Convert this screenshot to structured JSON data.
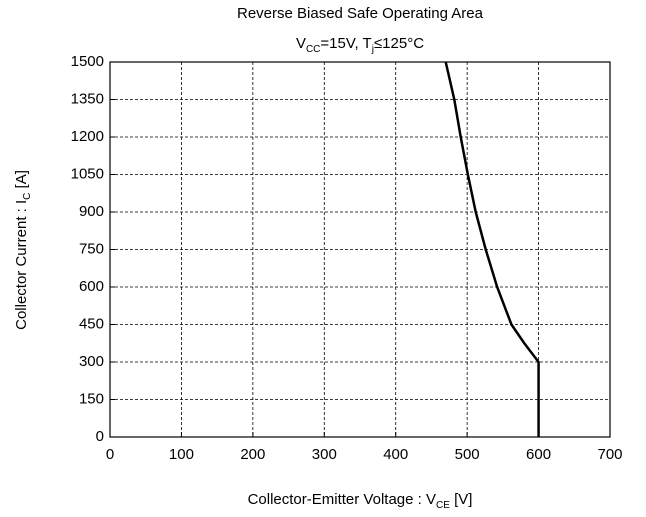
{
  "chart_data": {
    "type": "line",
    "title": "Reverse Biased Safe Operating Area",
    "subtitle_parts": [
      "V",
      "CC",
      "=15V, T",
      "j",
      "≤125°C"
    ],
    "x_label_parts": [
      "Collector-Emitter Voltage  : V",
      "CE",
      " [V]"
    ],
    "y_label_parts": [
      "Collector Current : I",
      "C",
      " [A]"
    ],
    "xlim": [
      0,
      700
    ],
    "xticks": [
      0,
      100,
      200,
      300,
      400,
      500,
      600,
      700
    ],
    "ylim": [
      0,
      1500
    ],
    "yticks": [
      0,
      150,
      300,
      450,
      600,
      750,
      900,
      1050,
      1200,
      1350,
      1500
    ],
    "grid": true,
    "series": [
      {
        "color": "#000000",
        "x": [
          470,
          482,
          491,
          501,
          512,
          526,
          542,
          562,
          580,
          600,
          600
        ],
        "values": [
          1500,
          1350,
          1200,
          1050,
          900,
          750,
          600,
          450,
          375,
          300,
          0
        ]
      }
    ]
  }
}
